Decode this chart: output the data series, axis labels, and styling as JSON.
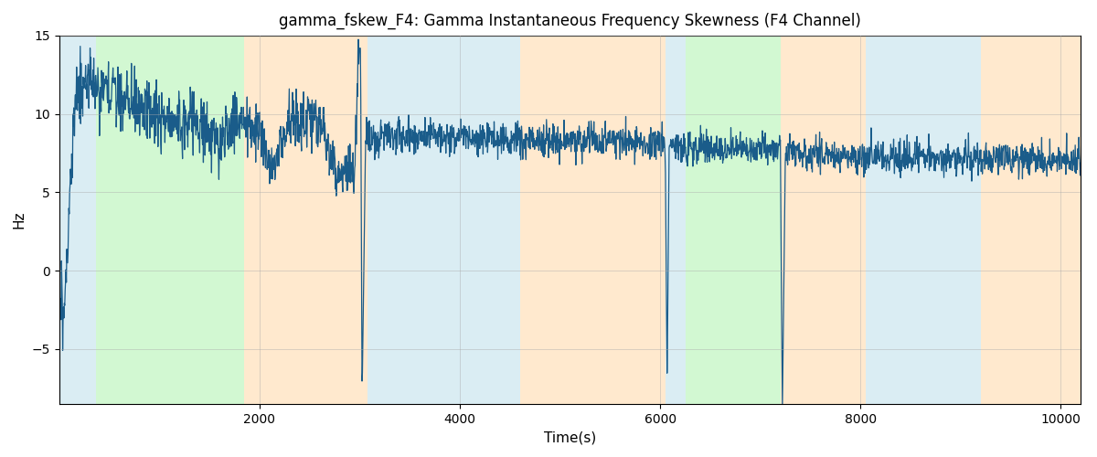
{
  "title": "gamma_fskew_F4: Gamma Instantaneous Frequency Skewness (F4 Channel)",
  "xlabel": "Time(s)",
  "ylabel": "Hz",
  "xlim": [
    0,
    10200
  ],
  "ylim": [
    -8.5,
    15
  ],
  "yticks": [
    -5,
    0,
    5,
    10,
    15
  ],
  "xticks": [
    2000,
    4000,
    6000,
    8000,
    10000
  ],
  "bg_bands": [
    {
      "xmin": 0,
      "xmax": 370,
      "color": "#add8e6",
      "alpha": 0.45
    },
    {
      "xmin": 370,
      "xmax": 1850,
      "color": "#90ee90",
      "alpha": 0.4
    },
    {
      "xmin": 1850,
      "xmax": 3080,
      "color": "#ffd59e",
      "alpha": 0.5
    },
    {
      "xmin": 3080,
      "xmax": 4600,
      "color": "#add8e6",
      "alpha": 0.45
    },
    {
      "xmin": 4600,
      "xmax": 6050,
      "color": "#ffd59e",
      "alpha": 0.5
    },
    {
      "xmin": 6050,
      "xmax": 6250,
      "color": "#add8e6",
      "alpha": 0.45
    },
    {
      "xmin": 6250,
      "xmax": 7200,
      "color": "#90ee90",
      "alpha": 0.4
    },
    {
      "xmin": 7200,
      "xmax": 8050,
      "color": "#ffd59e",
      "alpha": 0.5
    },
    {
      "xmin": 8050,
      "xmax": 9200,
      "color": "#add8e6",
      "alpha": 0.45
    },
    {
      "xmin": 9200,
      "xmax": 10200,
      "color": "#ffd59e",
      "alpha": 0.5
    }
  ],
  "line_color": "#1a5c8a",
  "line_width": 0.9,
  "grid_color": "#aaaaaa",
  "grid_alpha": 0.5,
  "title_fontsize": 12,
  "axis_fontsize": 11,
  "seed": 2023,
  "n_points": 2500
}
